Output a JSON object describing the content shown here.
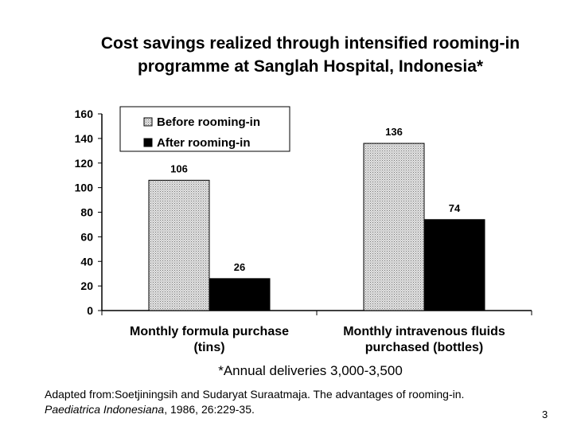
{
  "title": {
    "line1": "Cost savings realized through intensified rooming-in",
    "line2": "programme at Sanglah Hospital, Indonesia*"
  },
  "chart_data": {
    "type": "bar",
    "categories": [
      "Monthly formula purchase (tins)",
      "Monthly intravenous fluids purchased (bottles)"
    ],
    "category_lines": [
      [
        "Monthly formula purchase",
        "(tins)"
      ],
      [
        "Monthly intravenous fluids",
        "purchased (bottles)"
      ]
    ],
    "series": [
      {
        "name": "Before rooming-in",
        "values": [
          106,
          136
        ],
        "pattern": "light-gray-dotted"
      },
      {
        "name": "After rooming-in",
        "values": [
          26,
          74
        ],
        "color": "#000000"
      }
    ],
    "ylim": [
      0,
      160
    ],
    "yticks": [
      0,
      20,
      40,
      60,
      80,
      100,
      120,
      140,
      160
    ],
    "legend_position": "top-left",
    "grid": false
  },
  "footnote": "*Annual deliveries 3,000-3,500",
  "source": {
    "line1": "Adapted from:Soetjiningsih and Sudaryat Suraatmaja. The advantages of rooming-in.",
    "journal": "Paediatrica Indonesiana",
    "line2_rest": ", 1986, 26:229-35."
  },
  "page_number": "3"
}
